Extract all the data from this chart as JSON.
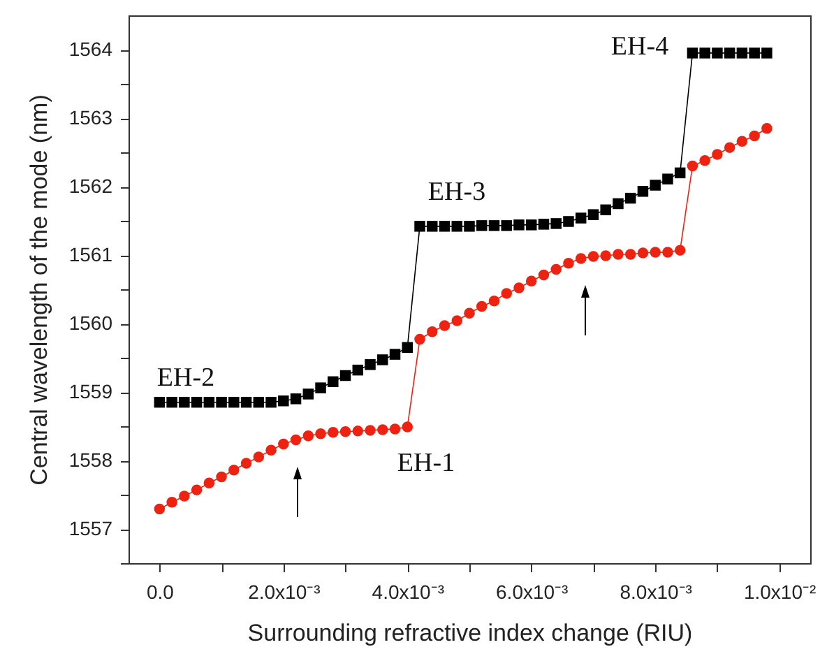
{
  "chart_data": {
    "type": "line",
    "xlabel": "Surrounding refractive index change (RIU)",
    "ylabel": "Central wavelength of the mode (nm)",
    "x": [
      0,
      0.0002,
      0.0004,
      0.0006,
      0.0008,
      0.001,
      0.0012,
      0.0014,
      0.0016,
      0.0018,
      0.002,
      0.0022,
      0.0024,
      0.0026,
      0.0028,
      0.003,
      0.0032,
      0.0034,
      0.0036,
      0.0038,
      0.004,
      0.0042,
      0.0044,
      0.0046,
      0.0048,
      0.005,
      0.0052,
      0.0054,
      0.0056,
      0.0058,
      0.006,
      0.0062,
      0.0064,
      0.0066,
      0.0068,
      0.007,
      0.0072,
      0.0074,
      0.0076,
      0.0078,
      0.008,
      0.0082,
      0.0084,
      0.0086,
      0.0088,
      0.009,
      0.0092,
      0.0094,
      0.0096,
      0.0098
    ],
    "series": [
      {
        "color": "#000000",
        "marker": "square",
        "values": [
          1558.85,
          1558.85,
          1558.85,
          1558.85,
          1558.85,
          1558.85,
          1558.85,
          1558.85,
          1558.85,
          1558.85,
          1558.87,
          1558.9,
          1558.97,
          1559.06,
          1559.15,
          1559.24,
          1559.32,
          1559.4,
          1559.47,
          1559.55,
          1559.65,
          1561.42,
          1561.42,
          1561.42,
          1561.42,
          1561.42,
          1561.43,
          1561.43,
          1561.43,
          1561.44,
          1561.44,
          1561.45,
          1561.46,
          1561.49,
          1561.54,
          1561.59,
          1561.66,
          1561.75,
          1561.83,
          1561.93,
          1562.02,
          1562.11,
          1562.2,
          1563.95,
          1563.95,
          1563.95,
          1563.95,
          1563.95,
          1563.95,
          1563.95
        ]
      },
      {
        "color": "#ee2211",
        "marker": "circle",
        "values": [
          1557.29,
          1557.39,
          1557.48,
          1557.57,
          1557.67,
          1557.76,
          1557.86,
          1557.96,
          1558.05,
          1558.15,
          1558.24,
          1558.3,
          1558.36,
          1558.39,
          1558.41,
          1558.42,
          1558.43,
          1558.44,
          1558.45,
          1558.46,
          1558.49,
          1559.77,
          1559.88,
          1559.97,
          1560.04,
          1560.15,
          1560.25,
          1560.33,
          1560.44,
          1560.52,
          1560.62,
          1560.71,
          1560.79,
          1560.88,
          1560.95,
          1560.98,
          1560.99,
          1561.01,
          1561.01,
          1561.03,
          1561.04,
          1561.04,
          1561.07,
          1562.3,
          1562.38,
          1562.47,
          1562.57,
          1562.66,
          1562.74,
          1562.85
        ]
      }
    ],
    "xlim": [
      -0.0005,
      0.0105
    ],
    "ylim": [
      1556.5,
      1564.5
    ],
    "xticks": [
      {
        "value": 0,
        "label": "0.0"
      },
      {
        "value": 0.001,
        "label": null
      },
      {
        "value": 0.002,
        "label": "2.0x10⁻³"
      },
      {
        "value": 0.003,
        "label": null
      },
      {
        "value": 0.004,
        "label": "4.0x10⁻³"
      },
      {
        "value": 0.005,
        "label": null
      },
      {
        "value": 0.006,
        "label": "6.0x10⁻³"
      },
      {
        "value": 0.007,
        "label": null
      },
      {
        "value": 0.008,
        "label": "8.0x10⁻³"
      },
      {
        "value": 0.009,
        "label": null
      },
      {
        "value": 0.01,
        "label": "1.0x10⁻²"
      }
    ],
    "yticks": [
      {
        "value": 1556.5,
        "label": null
      },
      1557,
      {
        "value": 1557.5,
        "label": null
      },
      1558,
      {
        "value": 1558.5,
        "label": null
      },
      1559,
      {
        "value": 1559.5,
        "label": null
      },
      1560,
      {
        "value": 1560.5,
        "label": null
      },
      1561,
      {
        "value": 1561.5,
        "label": null
      },
      1562,
      {
        "value": 1562.5,
        "label": null
      },
      1563,
      {
        "value": 1563.5,
        "label": null
      },
      1564
    ],
    "grid": false,
    "line_style": "solid",
    "annotations": [
      "EH-4",
      "EH-3",
      "EH-2",
      "EH-1"
    ]
  }
}
